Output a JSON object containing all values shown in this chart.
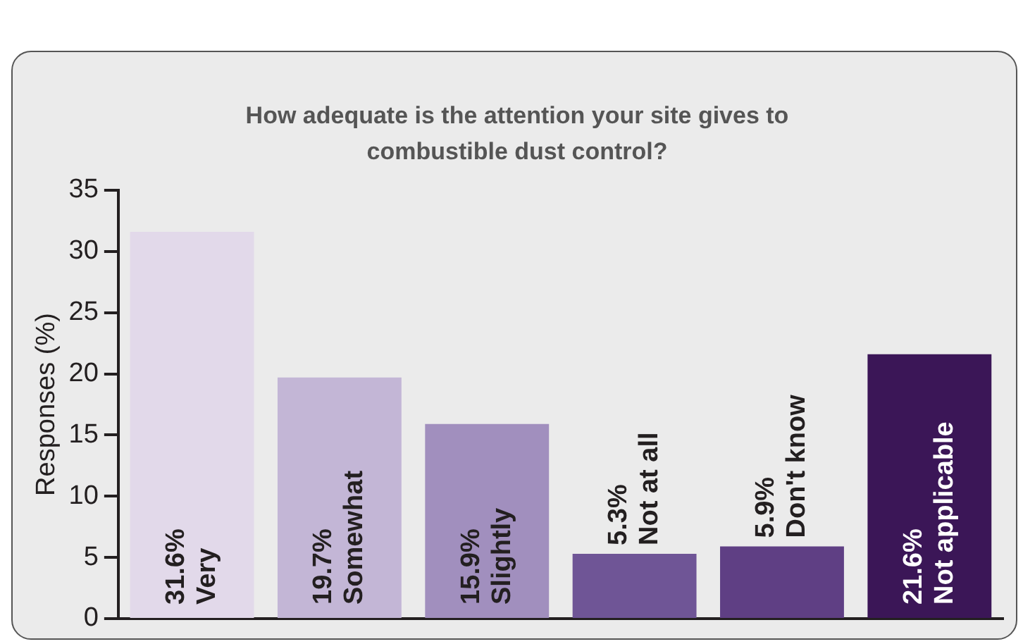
{
  "chart_data": {
    "type": "bar",
    "title": "How adequate is the attention your site gives to combustible dust control?",
    "ylabel": "Responses (%)",
    "categories": [
      "Very",
      "Somewhat",
      "Slightly",
      "Not at all",
      "Don't know",
      "Not applicable"
    ],
    "values": [
      31.6,
      19.7,
      15.9,
      5.3,
      5.9,
      21.6
    ],
    "value_labels": [
      "31.6%",
      "19.7%",
      "15.9%",
      "5.3%",
      "5.9%",
      "21.6%"
    ],
    "colors": [
      "#e2d9ea",
      "#c3b6d6",
      "#a18fbe",
      "#6f5596",
      "#5f3f84",
      "#3b1657"
    ],
    "ylim": [
      0,
      35
    ],
    "yticks": [
      0,
      5,
      10,
      15,
      20,
      25,
      30,
      35
    ],
    "grid": false,
    "legend": false
  }
}
